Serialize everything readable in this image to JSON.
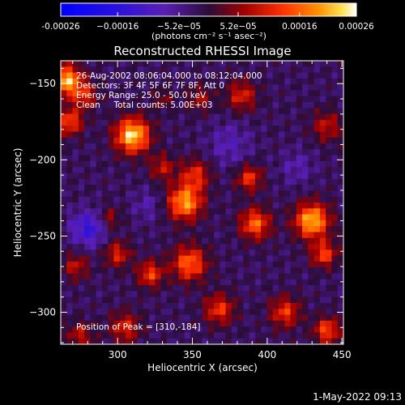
{
  "chart_data": {
    "type": "heatmap",
    "title": "Reconstructed RHESSI Image",
    "xlabel": "Heliocentric X (arcsec)",
    "ylabel": "Heliocentric Y (arcsec)",
    "xlim": [
      262,
      451
    ],
    "ylim": [
      -321,
      -135
    ],
    "x_ticks": [
      300,
      350,
      400,
      450
    ],
    "y_ticks": [
      -150,
      -200,
      -250,
      -300
    ],
    "colorbar": {
      "unit_label": "(photons cm⁻² s⁻¹ asec⁻²)",
      "range": [
        -0.00026,
        0.00026
      ],
      "ticks": [
        {
          "value": -0.00026,
          "label": "-0.00026"
        },
        {
          "value": -0.00016,
          "label": "−0.00016"
        },
        {
          "value": -5.2e-05,
          "label": "−5.2e−05"
        },
        {
          "value": 5.2e-05,
          "label": "5.2e−05"
        },
        {
          "value": 0.00016,
          "label": "0.00016"
        },
        {
          "value": 0.00026,
          "label": "0.00026"
        }
      ]
    },
    "annotations": [
      "26-Aug-2002 08:06:04.000 to 08:12:04.000",
      "Detectors: 3F 4F 5F 6F 7F 8F, Att 0",
      "Energy Range: 25.0 - 50.0 keV",
      "Clean     Total counts: 5.00E+03"
    ],
    "peak_label": "Position of Peak = [310,-184]",
    "peak": {
      "x": 310,
      "y": -184
    },
    "hotspots": [
      {
        "x": 266,
        "y": -148,
        "sigma": 7,
        "amp": 0.00024
      },
      {
        "x": 268,
        "y": -175,
        "sigma": 6,
        "amp": 0.00016
      },
      {
        "x": 278,
        "y": -158,
        "sigma": 6,
        "amp": 0.00012
      },
      {
        "x": 310,
        "y": -184,
        "sigma": 8,
        "amp": 0.00026
      },
      {
        "x": 330,
        "y": -205,
        "sigma": 6,
        "amp": 0.0001
      },
      {
        "x": 345,
        "y": -228,
        "sigma": 8,
        "amp": 0.00022
      },
      {
        "x": 352,
        "y": -210,
        "sigma": 7,
        "amp": 0.00013
      },
      {
        "x": 383,
        "y": -158,
        "sigma": 7,
        "amp": 0.00012
      },
      {
        "x": 388,
        "y": -212,
        "sigma": 6,
        "amp": 0.00014
      },
      {
        "x": 392,
        "y": -242,
        "sigma": 7,
        "amp": 0.00018
      },
      {
        "x": 430,
        "y": -240,
        "sigma": 8,
        "amp": 0.00024
      },
      {
        "x": 438,
        "y": -262,
        "sigma": 6,
        "amp": 0.00015
      },
      {
        "x": 440,
        "y": -178,
        "sigma": 7,
        "amp": 0.0001
      },
      {
        "x": 412,
        "y": -300,
        "sigma": 7,
        "amp": 0.00014
      },
      {
        "x": 440,
        "y": -312,
        "sigma": 6,
        "amp": 0.00016
      },
      {
        "x": 348,
        "y": -268,
        "sigma": 8,
        "amp": 0.00018
      },
      {
        "x": 322,
        "y": -275,
        "sigma": 6,
        "amp": 0.00015
      },
      {
        "x": 300,
        "y": -262,
        "sigma": 6,
        "amp": 0.00012
      },
      {
        "x": 272,
        "y": -270,
        "sigma": 6,
        "amp": 0.0001
      },
      {
        "x": 368,
        "y": -298,
        "sigma": 7,
        "amp": 0.00014
      },
      {
        "x": 305,
        "y": -310,
        "sigma": 7,
        "amp": 0.00012
      },
      {
        "x": 275,
        "y": -315,
        "sigma": 6,
        "amp": 0.0001
      },
      {
        "x": 295,
        "y": -238,
        "sigma": 5,
        "amp": 8e-05
      },
      {
        "x": 355,
        "y": -160,
        "sigma": 6,
        "amp": 8e-05
      },
      {
        "x": 330,
        "y": -160,
        "sigma": 5,
        "amp": 6e-05
      }
    ],
    "coldspots": [
      {
        "x": 280,
        "y": -245,
        "sigma": 8,
        "amp": -0.00012
      },
      {
        "x": 375,
        "y": -190,
        "sigma": 10,
        "amp": -6e-05
      },
      {
        "x": 420,
        "y": -205,
        "sigma": 8,
        "amp": -5e-05
      },
      {
        "x": 320,
        "y": -230,
        "sigma": 7,
        "amp": -5e-05
      }
    ],
    "grid": false
  },
  "footer_timestamp": "1-May-2022 09:13",
  "colors": {
    "background": "#000000",
    "frame": "#ffffff"
  }
}
